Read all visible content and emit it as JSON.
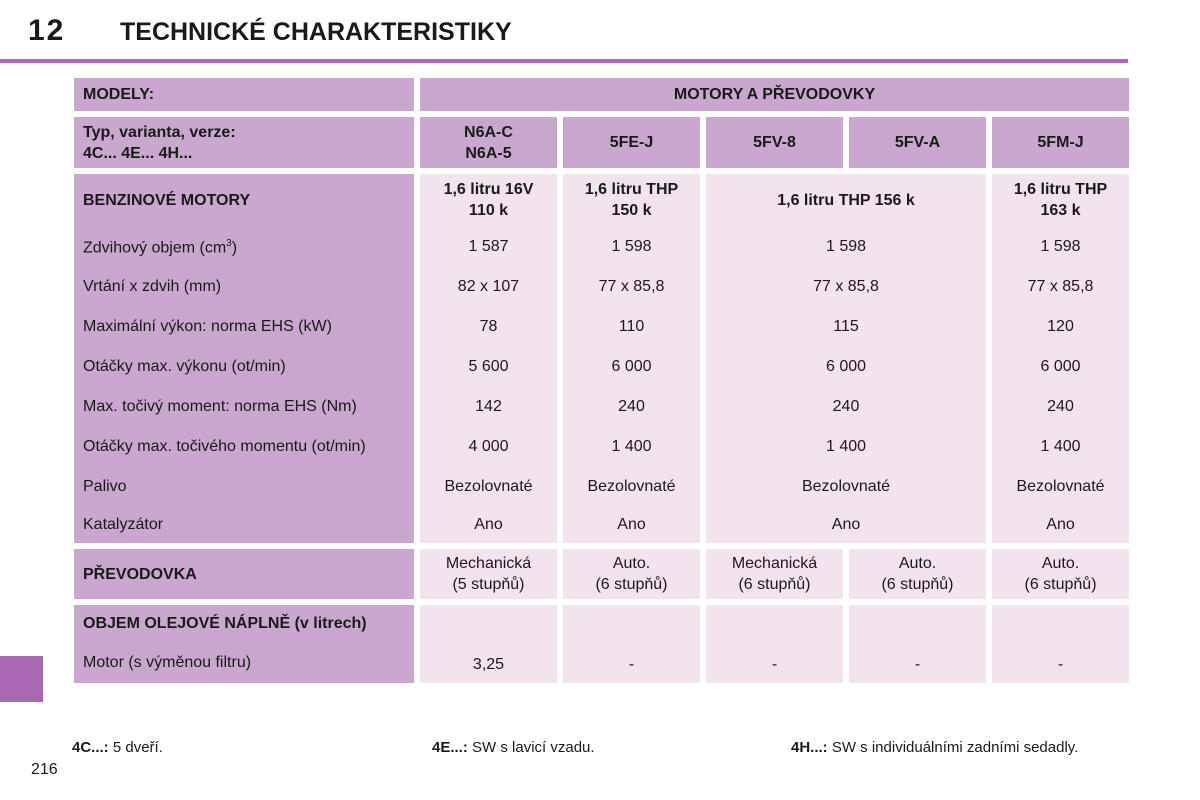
{
  "header": {
    "chapter": "12",
    "title": "TECHNICKÉ CHARAKTERISTIKY"
  },
  "table": {
    "models_label": "MODELY:",
    "group_label": "MOTORY A PŘEVODOVKY",
    "type_label_line1": "Typ, varianta, verze:",
    "type_label_line2": "4C... 4E... 4H...",
    "codes": [
      "N6A-C",
      "N6A-5",
      "5FE-J",
      "5FV-8",
      "5FV-A",
      "5FM-J"
    ],
    "petrol_label": "BENZINOVÉ MOTORY",
    "engines": [
      {
        "l1": "1,6 litru 16V",
        "l2": "110 k"
      },
      {
        "l1": "1,6 litru THP",
        "l2": "150 k"
      },
      {
        "l1": "1,6 litru THP 156 k"
      },
      {
        "l1": "1,6 litru THP",
        "l2": "163 k"
      }
    ],
    "rows": [
      {
        "label": "Zdvihový objem (cm",
        "sup": "3",
        "label_end": ")",
        "values": [
          "1 587",
          "1 598",
          "1 598",
          "1 598"
        ]
      },
      {
        "label": "Vrtání x zdvih (mm)",
        "values": [
          "82 x 107",
          "77 x 85,8",
          "77 x 85,8",
          "77 x 85,8"
        ]
      },
      {
        "label": "Maximální výkon: norma EHS (kW)",
        "values": [
          "78",
          "110",
          "115",
          "120"
        ]
      },
      {
        "label": "Otáčky max. výkonu (ot/min)",
        "values": [
          "5 600",
          "6 000",
          "6 000",
          "6 000"
        ]
      },
      {
        "label": "Max. točivý moment: norma EHS (Nm)",
        "values": [
          "142",
          "240",
          "240",
          "240"
        ]
      },
      {
        "label": "Otáčky max. točivého momentu (ot/min)",
        "values": [
          "4 000",
          "1 400",
          "1 400",
          "1 400"
        ]
      },
      {
        "label": "Palivo",
        "values": [
          "Bezolovnaté",
          "Bezolovnaté",
          "Bezolovnaté",
          "Bezolovnaté"
        ]
      },
      {
        "label": "Katalyzátor",
        "values": [
          "Ano",
          "Ano",
          "Ano",
          "Ano"
        ]
      }
    ],
    "gearbox_label": "PŘEVODOVKA",
    "gearboxes": [
      {
        "l1": "Mechanická",
        "l2": "(5 stupňů)"
      },
      {
        "l1": "Auto.",
        "l2": "(6 stupňů)"
      },
      {
        "l1": "Mechanická",
        "l2": "(6 stupňů)"
      },
      {
        "l1": "Auto.",
        "l2": "(6 stupňů)"
      },
      {
        "l1": "Auto.",
        "l2": "(6 stupňů)"
      }
    ],
    "oil_label": "OBJEM OLEJOVÉ NÁPLNĚ (v litrech)",
    "oil_row_label": "Motor (s výměnou filtru)",
    "oil_values": [
      "3,25",
      "-",
      "-",
      "-",
      "-"
    ]
  },
  "footnotes": [
    {
      "key": "4C...:",
      "text": " 5 dveří."
    },
    {
      "key": "4E...:",
      "text": " SW s lavicí vzadu."
    },
    {
      "key": "4H...:",
      "text": " SW s individuálními zadními sedadly."
    }
  ],
  "page_number": "216",
  "colors": {
    "accent": "#a868b2",
    "header_fill": "#c9a7cf",
    "value_fill": "#f3e3ef"
  }
}
